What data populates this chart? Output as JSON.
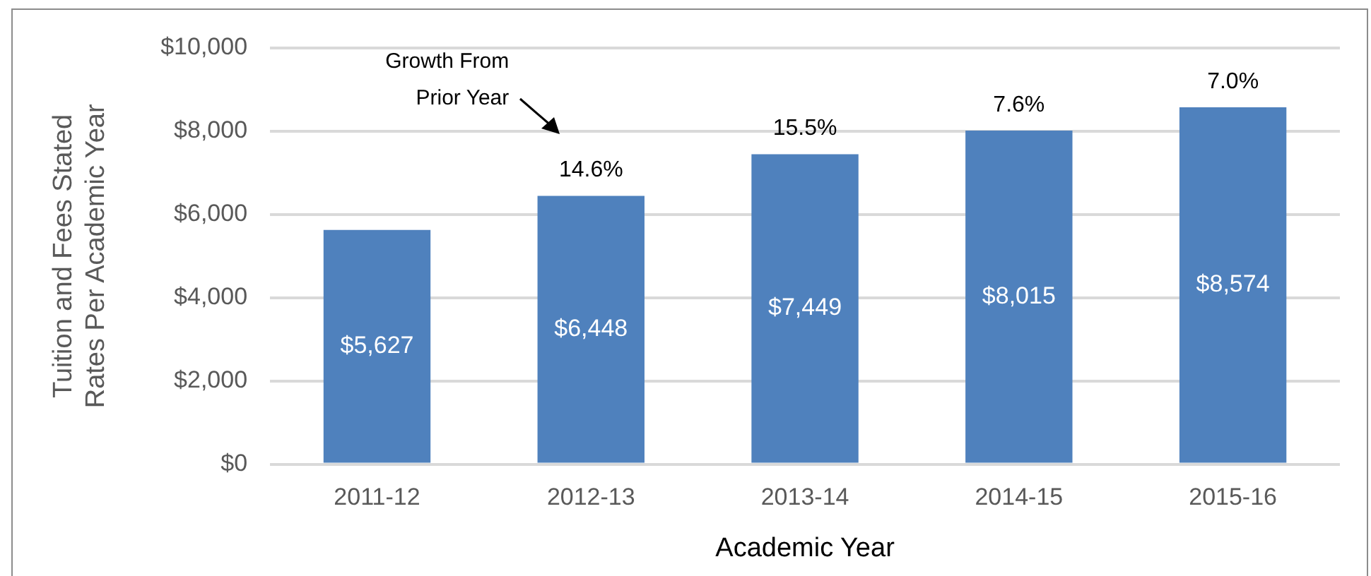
{
  "chart_data": {
    "type": "bar",
    "xlabel": "Academic Year",
    "ylabel": "Tuition and Fees Stated\nRates Per Academic Year",
    "categories": [
      "2011-12",
      "2012-13",
      "2013-14",
      "2014-15",
      "2015-16"
    ],
    "series": [
      {
        "color": "#4f81bd",
        "values": [
          5627,
          6448,
          7449,
          8015,
          8574
        ],
        "value_labels": [
          "$5,627",
          "$6,448",
          "$7,449",
          "$8,015",
          "$8,574"
        ]
      }
    ],
    "ylim": [
      0,
      10000
    ],
    "yticks": [
      {
        "value": 0,
        "label": "$0"
      },
      {
        "value": 2000,
        "label": "$2,000"
      },
      {
        "value": 4000,
        "label": "$4,000"
      },
      {
        "value": 6000,
        "label": "$6,000"
      },
      {
        "value": 8000,
        "label": "$8,000"
      },
      {
        "value": 10000,
        "label": "$10,000"
      }
    ],
    "grid": "y",
    "legend": false,
    "annotations": [
      "Growth From\nPrior Year",
      {
        "text": "14.6%",
        "x": "2012-13",
        "y": 6448
      },
      {
        "text": "15.5%",
        "x": "2013-14",
        "y": 7449
      },
      {
        "text": "7.6%",
        "x": "2014-15",
        "y": 8015
      },
      {
        "text": "7.0%",
        "x": "2015-16",
        "y": 8574
      }
    ]
  }
}
